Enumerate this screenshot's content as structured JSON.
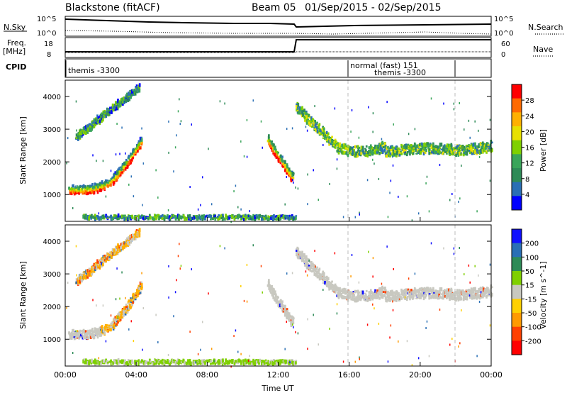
{
  "header": {
    "station": "Blackstone (fitACF)",
    "beam": "Beam 05",
    "date_range": "01/Sep/2015 - 02/Sep/2015"
  },
  "strips": {
    "nsky_label": "N.Sky",
    "nsky_ticks": [
      "10^5",
      "10^0"
    ],
    "nsearch_label": "N.Search",
    "nsearch_ticks": [
      "10^5",
      "10^0"
    ],
    "freq_label_1": "Freq.",
    "freq_label_2": "[MHz]",
    "freq_ticks": [
      "18",
      "8"
    ],
    "nave_label": "Nave",
    "nave_ticks": [
      "60",
      "0"
    ],
    "cpid_label": "CPID",
    "cpid_text_1": "themis -3300",
    "cpid_text_2": "normal (fast) 151",
    "cpid_text_3": "themis -3300"
  },
  "chart_data": [
    {
      "type": "heatmap",
      "panel": "power",
      "ylabel": "Slant Range [km]",
      "yticks": [
        "4000",
        "3000",
        "2000",
        "1000"
      ],
      "colorbar_label": "Power [dB]",
      "colorbar_ticks": [
        "28",
        "24",
        "20",
        "16",
        "12",
        "8",
        "4"
      ],
      "colorbar_colors": [
        "#ff0000",
        "#ff6a00",
        "#ffb000",
        "#e8e000",
        "#7fd000",
        "#3aa55a",
        "#2e8b57",
        "#2a6fb5",
        "#0000ff"
      ],
      "bands": [
        {
          "name": "near_range_echo",
          "color": "#ff2a00"
        },
        {
          "name": "main_arc",
          "color": "#ffb300"
        },
        {
          "name": "upper_arc",
          "color": "#2a6fb5"
        },
        {
          "name": "afternoon_band",
          "color": "#3aa55a"
        }
      ]
    },
    {
      "type": "heatmap",
      "panel": "velocity",
      "ylabel": "Slant Range [km]",
      "yticks": [
        "4000",
        "3000",
        "2000",
        "1000"
      ],
      "colorbar_label": "Velocity [m s^-1]",
      "colorbar_ticks": [
        "200",
        "100",
        "50",
        "15",
        "-15",
        "-50",
        "-100",
        "-200"
      ],
      "colorbar_colors": [
        "#1010ff",
        "#2a6fb5",
        "#2e8b57",
        "#7fd000",
        "#c8c8c0",
        "#ffd000",
        "#ff9a00",
        "#ff4000",
        "#ff0000"
      ],
      "xlabel": "Time UT",
      "xticks": [
        "00:00",
        "04:00",
        "08:00",
        "12:00",
        "16:00",
        "20:00",
        "00:00"
      ]
    }
  ]
}
